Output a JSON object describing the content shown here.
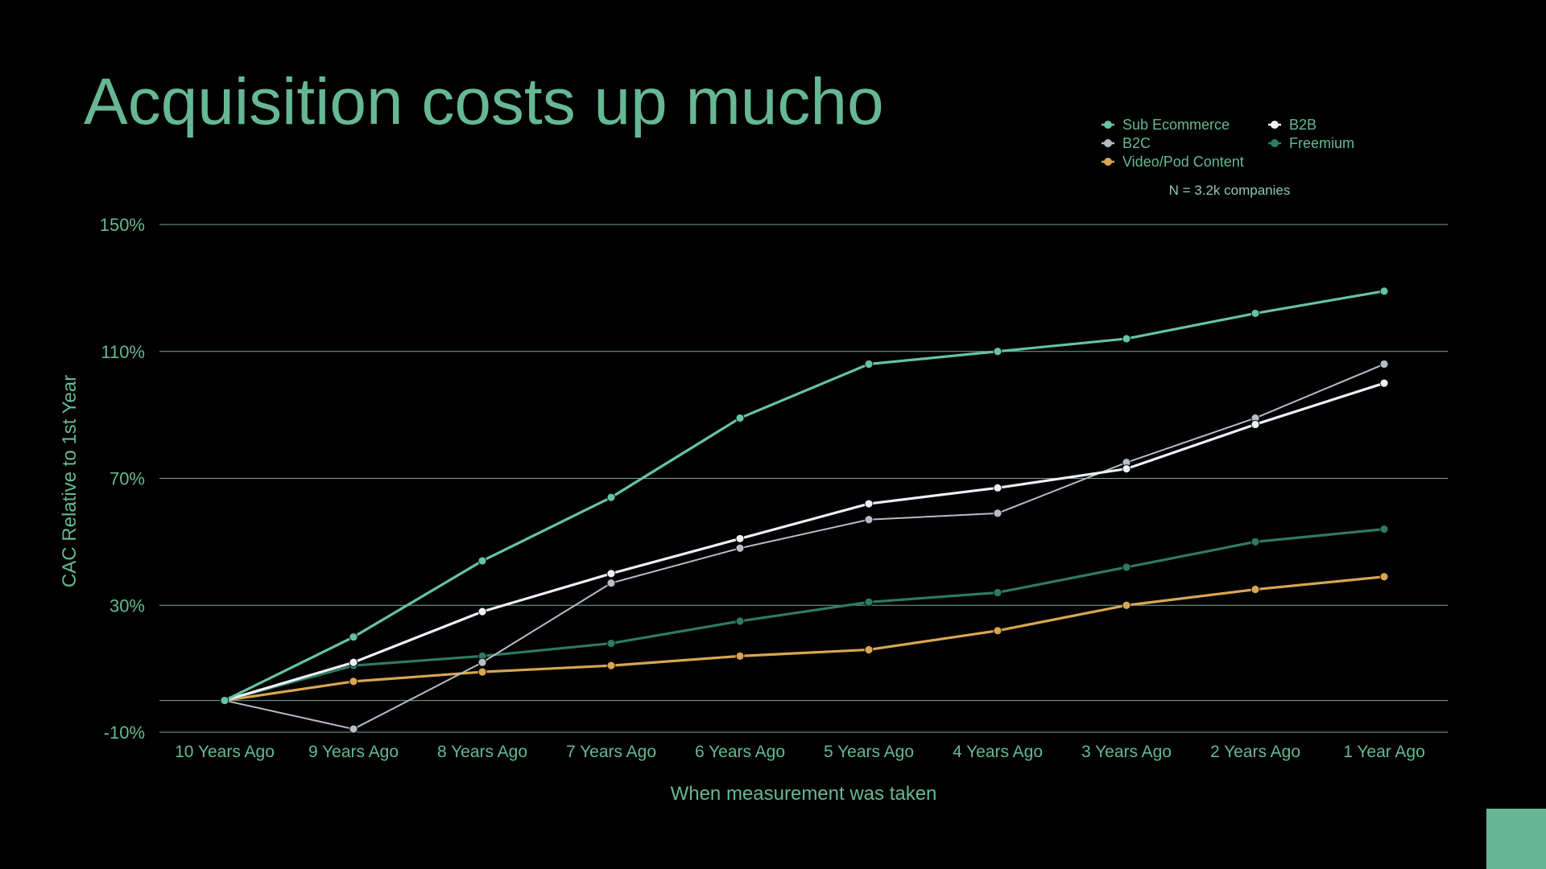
{
  "slide": {
    "title": "Acquisition costs up mucho",
    "note": "N = 3.2k companies"
  },
  "colors": {
    "background": "#000000",
    "accent": "#66b894",
    "gridline": "#8fc9b0"
  },
  "chart_data": {
    "type": "line",
    "title": "Acquisition costs up mucho",
    "xlabel": "When measurement was taken",
    "ylabel": "CAC Relative to 1st Year",
    "categories": [
      "10 Years Ago",
      "9 Years Ago",
      "8 Years Ago",
      "7 Years Ago",
      "6 Years Ago",
      "5 Years Ago",
      "4 Years Ago",
      "3 Years Ago",
      "2 Years Ago",
      "1 Year Ago"
    ],
    "ylim": [
      -10,
      150
    ],
    "yticks": [
      -10,
      30,
      70,
      110,
      150
    ],
    "ytick_labels": [
      "-10%",
      "30%",
      "70%",
      "110%",
      "150%"
    ],
    "baseline": 0,
    "grid": true,
    "legend_position": "top-right",
    "annotation": "N = 3.2k companies",
    "series": [
      {
        "name": "Sub Ecommerce",
        "color": "#66c2a5",
        "values": [
          0,
          20,
          44,
          64,
          89,
          106,
          110,
          114,
          122,
          129
        ]
      },
      {
        "name": "B2B",
        "color": "#eef0f8",
        "values": [
          0,
          12,
          28,
          40,
          51,
          62,
          67,
          73,
          87,
          100
        ]
      },
      {
        "name": "B2C",
        "color": "#b6bcc8",
        "values": [
          0,
          -9,
          12,
          37,
          48,
          57,
          59,
          75,
          89,
          106
        ]
      },
      {
        "name": "Freemium",
        "color": "#2f7a64",
        "values": [
          0,
          11,
          14,
          18,
          25,
          31,
          34,
          42,
          50,
          54
        ]
      },
      {
        "name": "Video/Pod Content",
        "color": "#d9a650",
        "values": [
          0,
          6,
          9,
          11,
          14,
          16,
          22,
          30,
          35,
          39
        ]
      }
    ]
  }
}
